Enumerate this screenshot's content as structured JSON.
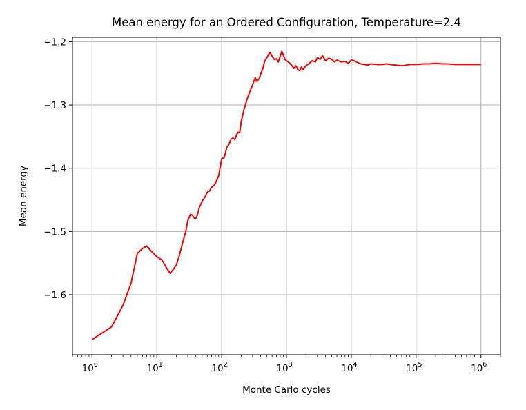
{
  "chart_data": {
    "type": "line",
    "title": "Mean energy for an Ordered Configuration, Temperature=2.4",
    "xlabel": "Monte Carlo cycles",
    "ylabel": "Mean energy",
    "xscale": "log",
    "xlim": [
      0.5,
      2000000
    ],
    "ylim": [
      -1.695,
      -1.193
    ],
    "grid": true,
    "x_ticks": [
      {
        "value": 1,
        "base": "10",
        "exp": "0"
      },
      {
        "value": 10,
        "base": "10",
        "exp": "1"
      },
      {
        "value": 100,
        "base": "10",
        "exp": "2"
      },
      {
        "value": 1000,
        "base": "10",
        "exp": "3"
      },
      {
        "value": 10000,
        "base": "10",
        "exp": "4"
      },
      {
        "value": 100000,
        "base": "10",
        "exp": "5"
      },
      {
        "value": 1000000,
        "base": "10",
        "exp": "6"
      }
    ],
    "y_ticks": [
      {
        "value": -1.2,
        "label": "−1.2"
      },
      {
        "value": -1.3,
        "label": "−1.3"
      },
      {
        "value": -1.4,
        "label": "−1.4"
      },
      {
        "value": -1.5,
        "label": "−1.5"
      },
      {
        "value": -1.6,
        "label": "−1.6"
      }
    ],
    "series": [
      {
        "color": "#ff0000",
        "x": [
          1,
          2,
          3,
          4,
          5,
          6,
          7,
          8,
          10,
          12,
          14,
          16,
          18,
          20,
          22,
          25,
          28,
          30,
          33,
          35,
          38,
          40,
          42,
          45,
          50,
          55,
          60,
          65,
          70,
          75,
          80,
          90,
          100,
          110,
          120,
          130,
          140,
          150,
          160,
          170,
          180,
          190,
          200,
          220,
          250,
          280,
          300,
          330,
          350,
          380,
          400,
          430,
          460,
          500,
          530,
          560,
          600,
          650,
          700,
          750,
          800,
          850,
          900,
          950,
          1000,
          1100,
          1200,
          1300,
          1400,
          1500,
          1600,
          1700,
          1800,
          2000,
          2200,
          2500,
          2800,
          3000,
          3300,
          3600,
          4000,
          4500,
          5000,
          5500,
          6000,
          7000,
          8000,
          9000,
          10000,
          11000,
          12000,
          14000,
          16000,
          18000,
          20000,
          25000,
          30000,
          35000,
          40000,
          50000,
          60000,
          70000,
          80000,
          100000,
          130000,
          160000,
          200000,
          250000,
          300000,
          400000,
          500000,
          700000,
          1000000
        ],
        "y": [
          -1.671,
          -1.651,
          -1.617,
          -1.582,
          -1.535,
          -1.527,
          -1.523,
          -1.53,
          -1.54,
          -1.545,
          -1.557,
          -1.566,
          -1.56,
          -1.553,
          -1.54,
          -1.518,
          -1.5,
          -1.483,
          -1.473,
          -1.474,
          -1.479,
          -1.479,
          -1.475,
          -1.463,
          -1.452,
          -1.446,
          -1.438,
          -1.436,
          -1.43,
          -1.428,
          -1.424,
          -1.412,
          -1.385,
          -1.383,
          -1.367,
          -1.362,
          -1.354,
          -1.352,
          -1.355,
          -1.347,
          -1.343,
          -1.344,
          -1.327,
          -1.308,
          -1.289,
          -1.276,
          -1.268,
          -1.257,
          -1.263,
          -1.258,
          -1.251,
          -1.243,
          -1.231,
          -1.225,
          -1.22,
          -1.217,
          -1.223,
          -1.228,
          -1.227,
          -1.232,
          -1.223,
          -1.215,
          -1.222,
          -1.228,
          -1.23,
          -1.233,
          -1.237,
          -1.242,
          -1.238,
          -1.244,
          -1.246,
          -1.24,
          -1.244,
          -1.238,
          -1.235,
          -1.23,
          -1.232,
          -1.225,
          -1.228,
          -1.222,
          -1.23,
          -1.226,
          -1.228,
          -1.232,
          -1.229,
          -1.232,
          -1.231,
          -1.234,
          -1.229,
          -1.23,
          -1.232,
          -1.235,
          -1.236,
          -1.237,
          -1.235,
          -1.236,
          -1.236,
          -1.235,
          -1.236,
          -1.237,
          -1.238,
          -1.237,
          -1.236,
          -1.236,
          -1.235,
          -1.235,
          -1.234,
          -1.235,
          -1.235,
          -1.236,
          -1.236,
          -1.236,
          -1.236
        ]
      }
    ]
  }
}
